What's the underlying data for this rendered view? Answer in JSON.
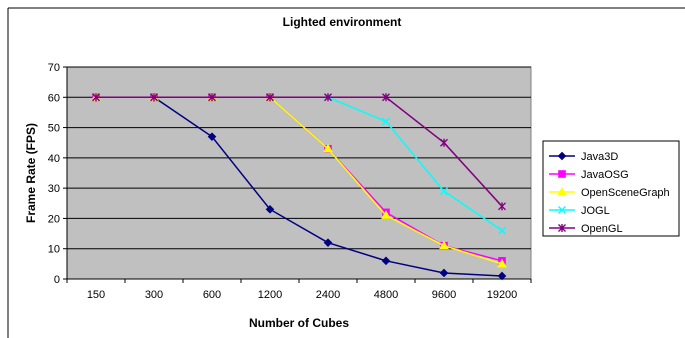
{
  "chart_data": {
    "type": "line",
    "title": "Lighted environment",
    "xlabel": "Number of Cubes",
    "ylabel": "Frame Rate (FPS)",
    "categories": [
      "150",
      "300",
      "600",
      "1200",
      "2400",
      "4800",
      "9600",
      "19200"
    ],
    "ylim": [
      0,
      70
    ],
    "yticks": [
      0,
      10,
      20,
      30,
      40,
      50,
      60,
      70
    ],
    "grid": true,
    "legend_position": "right",
    "plot_background": "#c0c0c0",
    "series": [
      {
        "name": "Java3D",
        "color": "#000080",
        "marker": "diamond",
        "values": [
          60,
          60,
          47,
          23,
          12,
          6,
          2,
          1
        ]
      },
      {
        "name": "JavaOSG",
        "color": "#ff00ff",
        "marker": "square",
        "values": [
          60,
          60,
          60,
          60,
          43,
          22,
          11,
          6
        ]
      },
      {
        "name": "OpenSceneGraph",
        "color": "#ffff00",
        "marker": "triangle",
        "values": [
          60,
          60,
          60,
          60,
          43,
          21,
          11,
          5
        ]
      },
      {
        "name": "JOGL",
        "color": "#00ffff",
        "marker": "x",
        "values": [
          60,
          60,
          60,
          60,
          60,
          52,
          29,
          16
        ]
      },
      {
        "name": "OpenGL",
        "color": "#800080",
        "marker": "star",
        "values": [
          60,
          60,
          60,
          60,
          60,
          60,
          45,
          24
        ]
      }
    ]
  }
}
